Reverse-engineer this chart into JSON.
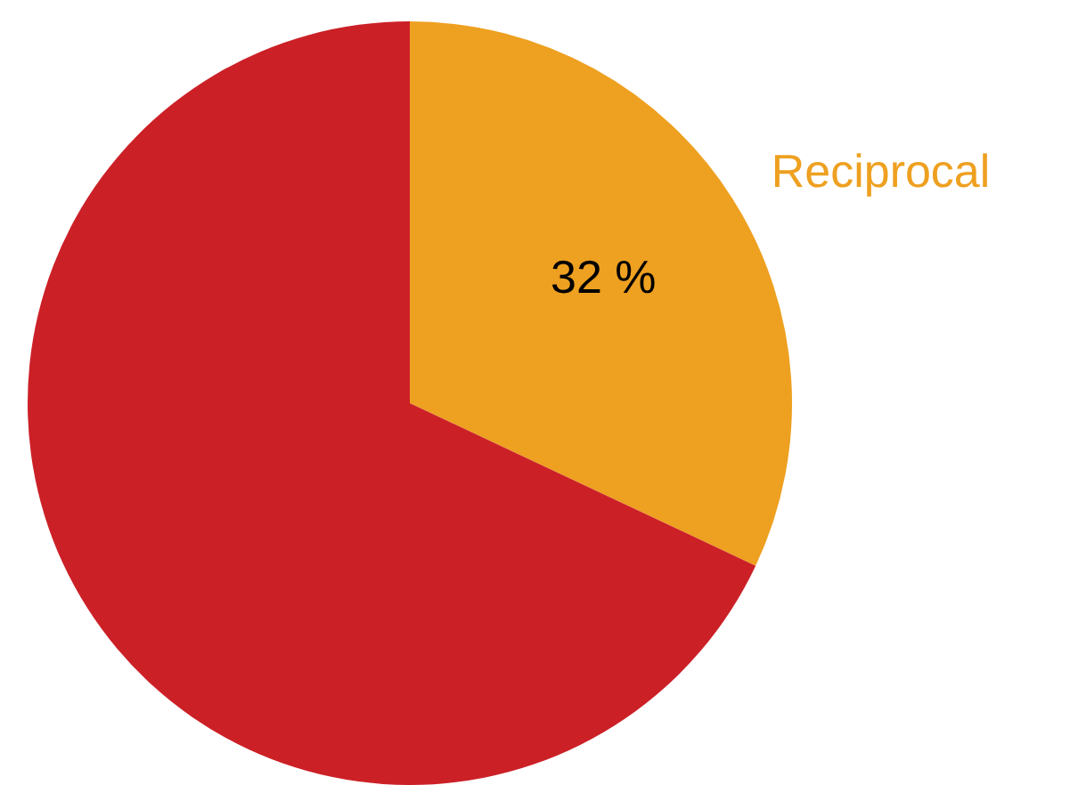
{
  "chart_data": {
    "type": "pie",
    "categories": [
      "Reciprocal",
      null
    ],
    "values": [
      32,
      68
    ],
    "colors": [
      "#eea020",
      "#cc2027"
    ],
    "value_labels": [
      "32 %",
      null
    ],
    "legend": false
  }
}
